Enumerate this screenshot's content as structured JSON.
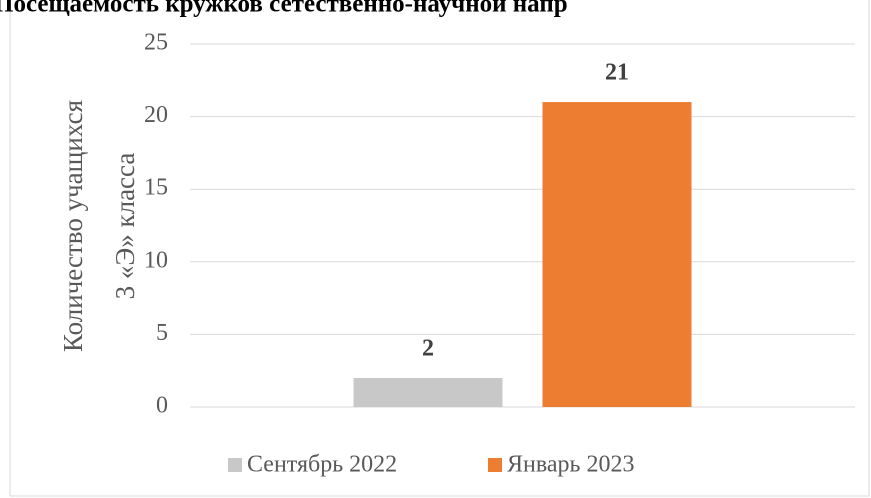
{
  "chart_data": {
    "type": "bar",
    "title": "Посещаемость кружков сетественно-научной напр",
    "y_label": [
      "Количество учащихся",
      "3 «Э» класса"
    ],
    "categories": [
      null
    ],
    "series": [
      {
        "name": "Сентябрь 2022",
        "color": "#c8c8c8",
        "values": [
          2
        ]
      },
      {
        "name": "Январь 2023",
        "color": "#ed7d31",
        "values": [
          21
        ]
      }
    ],
    "ylim": [
      0,
      25
    ],
    "yticks": [
      0,
      5,
      10,
      15,
      20,
      25
    ],
    "grid": true,
    "legend": "bottom"
  }
}
